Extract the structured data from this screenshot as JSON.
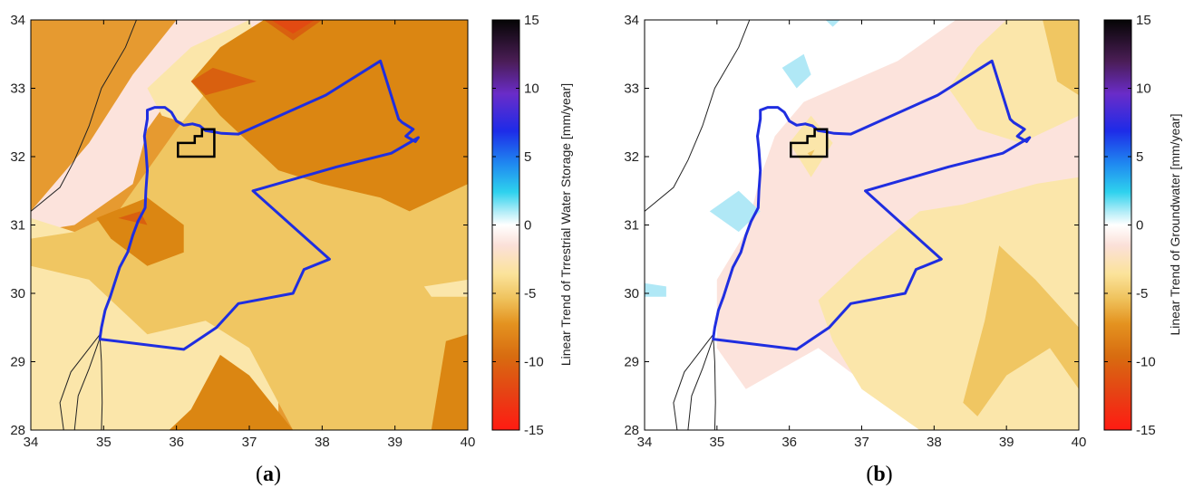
{
  "colors": {
    "c0": "#fce3dc",
    "c1": "#fbe6aa",
    "c2": "#f0c662",
    "c3": "#e69a30",
    "c4": "#db8612",
    "c5": "#d9600f",
    "c6": "#e24a12",
    "pos": "#b0e8f6",
    "boundary": "#1f2ee0",
    "box": "#000000",
    "coast": "#222222"
  },
  "colorbar": {
    "ticks": [
      "15",
      "10",
      "5",
      "0",
      "-5",
      "-10",
      "-15"
    ],
    "tick_values": [
      15,
      10,
      5,
      0,
      -5,
      -10,
      -15
    ]
  },
  "chart_data": [
    {
      "type": "heatmap",
      "panel": "a",
      "caption": {
        "open": "(",
        "letter": "a",
        "close": ")"
      },
      "xlim": [
        34,
        40
      ],
      "ylim": [
        28,
        34
      ],
      "xticks": [
        "34",
        "35",
        "36",
        "37",
        "38",
        "39",
        "40"
      ],
      "yticks": [
        "28",
        "29",
        "30",
        "31",
        "32",
        "33",
        "34"
      ],
      "colorbar_label": "Linear Trend of Trrestrial Water Storage [mm/year]",
      "colorbar_range": [
        -15,
        15
      ],
      "background_level": "c3",
      "regions": [
        {
          "level": "c0",
          "points": [
            [
              34,
              31.2
            ],
            [
              34.8,
              32.2
            ],
            [
              35.4,
              33.2
            ],
            [
              36,
              34
            ],
            [
              37.4,
              34
            ],
            [
              36,
              33
            ],
            [
              35.6,
              32.4
            ],
            [
              35.4,
              31.6
            ],
            [
              34.6,
              31
            ],
            [
              34,
              30.9
            ]
          ]
        },
        {
          "level": "c1",
          "points": [
            [
              34,
              31.1
            ],
            [
              34.6,
              30.9
            ],
            [
              35,
              30.6
            ],
            [
              35.2,
              30.2
            ],
            [
              35.6,
              29.6
            ],
            [
              36.4,
              29.8
            ],
            [
              37,
              29.6
            ],
            [
              37.4,
              29
            ],
            [
              37.4,
              28
            ],
            [
              34,
              28
            ]
          ]
        },
        {
          "level": "c1",
          "points": [
            [
              35.6,
              33
            ],
            [
              36.2,
              33.6
            ],
            [
              37,
              34
            ],
            [
              37.2,
              33.4
            ],
            [
              36.6,
              32.8
            ],
            [
              36.4,
              32.4
            ],
            [
              35.8,
              32.6
            ]
          ]
        },
        {
          "level": "c2",
          "points": [
            [
              34,
              30.8
            ],
            [
              34.6,
              30.9
            ],
            [
              35.2,
              31.2
            ],
            [
              35.6,
              31.8
            ],
            [
              36,
              32.4
            ],
            [
              36.6,
              33.2
            ],
            [
              37.2,
              34
            ],
            [
              40,
              34
            ],
            [
              40,
              28
            ],
            [
              37.6,
              28
            ],
            [
              37,
              29.2
            ],
            [
              36.4,
              29.6
            ],
            [
              35.6,
              29.4
            ],
            [
              35.2,
              29.8
            ],
            [
              34.8,
              30.2
            ],
            [
              34,
              30.4
            ]
          ]
        },
        {
          "level": "c1",
          "points": [
            [
              34,
              30.2
            ],
            [
              34.7,
              29.6
            ],
            [
              35,
              29
            ],
            [
              35.2,
              28
            ],
            [
              34,
              28
            ]
          ]
        },
        {
          "level": "c1",
          "points": [
            [
              39.4,
              30.1
            ],
            [
              40,
              30.2
            ],
            [
              40,
              29.95
            ],
            [
              39.5,
              29.95
            ]
          ]
        },
        {
          "level": "c4",
          "points": [
            [
              37.2,
              34
            ],
            [
              40,
              34
            ],
            [
              40,
              31.6
            ],
            [
              39.2,
              31.2
            ],
            [
              38.8,
              31.4
            ],
            [
              38,
              31.6
            ],
            [
              37.4,
              31.8
            ],
            [
              37,
              32.2
            ],
            [
              36.6,
              32.6
            ],
            [
              36.2,
              33.1
            ],
            [
              36.6,
              33.6
            ]
          ]
        },
        {
          "level": "c4",
          "points": [
            [
              34.9,
              31.1
            ],
            [
              35.6,
              31.4
            ],
            [
              36.1,
              31
            ],
            [
              36.1,
              30.6
            ],
            [
              35.6,
              30.4
            ],
            [
              35.1,
              30.8
            ]
          ]
        },
        {
          "level": "c4",
          "points": [
            [
              35.9,
              28
            ],
            [
              36.2,
              28.3
            ],
            [
              36.6,
              29.1
            ],
            [
              37,
              28.8
            ],
            [
              37.6,
              28
            ]
          ]
        },
        {
          "level": "c4",
          "points": [
            [
              39.5,
              28
            ],
            [
              40,
              28
            ],
            [
              40,
              29.4
            ],
            [
              39.7,
              29.3
            ]
          ]
        },
        {
          "level": "c5",
          "points": [
            [
              37.2,
              34
            ],
            [
              37.6,
              33.7
            ],
            [
              38.0,
              34
            ]
          ]
        },
        {
          "level": "c5",
          "points": [
            [
              36.2,
              33.1
            ],
            [
              36.5,
              33.3
            ],
            [
              37.1,
              33.1
            ],
            [
              36.4,
              32.9
            ]
          ]
        },
        {
          "level": "c5",
          "points": [
            [
              35.2,
              31.1
            ],
            [
              35.5,
              31.2
            ],
            [
              35.6,
              31.0
            ]
          ]
        },
        {
          "level": "c6",
          "points": [
            [
              37.3,
              34
            ],
            [
              37.6,
              33.8
            ],
            [
              37.9,
              34
            ]
          ]
        }
      ]
    },
    {
      "type": "heatmap",
      "panel": "b",
      "caption": {
        "open": "(",
        "letter": "b",
        "close": ")"
      },
      "xlim": [
        34,
        40
      ],
      "ylim": [
        28,
        34
      ],
      "xticks": [
        "34",
        "35",
        "36",
        "37",
        "38",
        "39",
        "40"
      ],
      "yticks": [
        "28",
        "29",
        "30",
        "31",
        "32",
        "33",
        "34"
      ],
      "colorbar_label": "Linear Trend of Groundwater [mm/year]",
      "colorbar_range": [
        -15,
        15
      ],
      "background_level": "white",
      "regions": [
        {
          "level": "c0",
          "points": [
            [
              35,
              30.2
            ],
            [
              35.4,
              30.9
            ],
            [
              35.6,
              31.7
            ],
            [
              35.8,
              32.3
            ],
            [
              36.2,
              32.8
            ],
            [
              37.5,
              33.4
            ],
            [
              38.3,
              34
            ],
            [
              40,
              34
            ],
            [
              40,
              28
            ],
            [
              38,
              28
            ],
            [
              37.4,
              28.4
            ],
            [
              36.4,
              29.2
            ],
            [
              35.4,
              28.6
            ],
            [
              35,
              29.2
            ]
          ]
        },
        {
          "level": "c1",
          "points": [
            [
              38.2,
              33
            ],
            [
              38.6,
              33.6
            ],
            [
              39,
              34
            ],
            [
              40,
              34
            ],
            [
              40,
              32.6
            ],
            [
              39.2,
              32.2
            ],
            [
              38.6,
              32.4
            ]
          ]
        },
        {
          "level": "c1",
          "points": [
            [
              36.0,
              32.2
            ],
            [
              36.3,
              32.6
            ],
            [
              36.6,
              32.2
            ],
            [
              36.3,
              31.7
            ]
          ]
        },
        {
          "level": "c1",
          "points": [
            [
              36.4,
              29.9
            ],
            [
              37,
              30.5
            ],
            [
              37.8,
              31.2
            ],
            [
              38.4,
              31.3
            ],
            [
              39.4,
              31.6
            ],
            [
              40,
              31.7
            ],
            [
              40,
              28
            ],
            [
              37.8,
              28
            ],
            [
              37,
              28.6
            ],
            [
              36.6,
              29.3
            ]
          ]
        },
        {
          "level": "c2",
          "points": [
            [
              39.5,
              34
            ],
            [
              40,
              34
            ],
            [
              40,
              32.9
            ],
            [
              39.7,
              33.1
            ]
          ]
        },
        {
          "level": "c2",
          "points": [
            [
              38.4,
              28.4
            ],
            [
              38.7,
              29.6
            ],
            [
              38.9,
              30.7
            ],
            [
              39.4,
              30.2
            ],
            [
              40,
              29.5
            ],
            [
              40,
              28.6
            ],
            [
              39.6,
              29.2
            ],
            [
              39,
              28.8
            ],
            [
              38.6,
              28.2
            ]
          ]
        },
        {
          "level": "c2",
          "points": [
            [
              36.25,
              32.05
            ],
            [
              36.35,
              32.1
            ],
            [
              36.3,
              32.0
            ]
          ]
        },
        {
          "level": "pos",
          "points": [
            [
              35.9,
              33.3
            ],
            [
              36.2,
              33.5
            ],
            [
              36.3,
              33.2
            ],
            [
              36.1,
              33.0
            ]
          ]
        },
        {
          "level": "pos",
          "points": [
            [
              34.9,
              31.2
            ],
            [
              35.3,
              31.5
            ],
            [
              35.6,
              31.2
            ],
            [
              35.3,
              30.9
            ]
          ]
        },
        {
          "level": "pos",
          "points": [
            [
              36.5,
              34
            ],
            [
              36.7,
              34
            ],
            [
              36.6,
              33.9
            ]
          ]
        },
        {
          "level": "pos",
          "points": [
            [
              34,
              30.15
            ],
            [
              34.3,
              30.1
            ],
            [
              34.3,
              29.95
            ],
            [
              34,
              29.95
            ]
          ]
        }
      ]
    }
  ],
  "boundary": [
    [
      34.95,
      29.35
    ],
    [
      34.97,
      29.5
    ],
    [
      35.02,
      29.75
    ],
    [
      35.09,
      29.95
    ],
    [
      35.15,
      30.15
    ],
    [
      35.22,
      30.38
    ],
    [
      35.33,
      30.6
    ],
    [
      35.4,
      30.85
    ],
    [
      35.47,
      31.05
    ],
    [
      35.57,
      31.25
    ],
    [
      35.58,
      31.5
    ],
    [
      35.6,
      31.8
    ],
    [
      35.58,
      32.1
    ],
    [
      35.56,
      32.3
    ],
    [
      35.6,
      32.55
    ],
    [
      35.6,
      32.68
    ],
    [
      35.7,
      32.72
    ],
    [
      35.84,
      32.72
    ],
    [
      35.93,
      32.65
    ],
    [
      36.0,
      32.52
    ],
    [
      36.1,
      32.46
    ],
    [
      36.22,
      32.48
    ],
    [
      36.32,
      32.45
    ],
    [
      36.4,
      32.38
    ],
    [
      36.52,
      32.36
    ],
    [
      36.62,
      32.34
    ],
    [
      36.85,
      32.33
    ],
    [
      38.05,
      32.9
    ],
    [
      38.8,
      33.4
    ],
    [
      39.05,
      32.55
    ],
    [
      39.1,
      32.5
    ],
    [
      39.25,
      32.4
    ],
    [
      39.15,
      32.3
    ],
    [
      39.28,
      32.22
    ],
    [
      39.32,
      32.28
    ],
    [
      38.95,
      32.05
    ],
    [
      38.2,
      31.85
    ],
    [
      37.05,
      31.5
    ],
    [
      38.1,
      30.5
    ],
    [
      37.75,
      30.35
    ],
    [
      37.6,
      30.0
    ],
    [
      36.85,
      29.85
    ],
    [
      36.55,
      29.5
    ],
    [
      36.1,
      29.18
    ],
    [
      34.95,
      29.33
    ]
  ],
  "box_poly": [
    [
      36.02,
      32.0
    ],
    [
      36.52,
      32.0
    ],
    [
      36.52,
      32.4
    ],
    [
      36.35,
      32.4
    ],
    [
      36.35,
      32.3
    ],
    [
      36.25,
      32.3
    ],
    [
      36.25,
      32.2
    ],
    [
      36.02,
      32.2
    ]
  ],
  "coast_lines": [
    [
      [
        34.0,
        31.2
      ],
      [
        34.4,
        31.55
      ],
      [
        34.6,
        31.95
      ],
      [
        34.8,
        32.45
      ],
      [
        34.97,
        33.0
      ],
      [
        35.3,
        33.6
      ],
      [
        35.45,
        34.0
      ]
    ],
    [
      [
        34.6,
        28.0
      ],
      [
        34.65,
        28.5
      ],
      [
        34.8,
        28.9
      ],
      [
        34.95,
        29.35
      ],
      [
        34.97,
        29.0
      ],
      [
        34.98,
        28.4
      ],
      [
        34.97,
        28.0
      ]
    ],
    [
      [
        34.45,
        28.0
      ],
      [
        34.4,
        28.4
      ],
      [
        34.55,
        28.85
      ],
      [
        34.95,
        29.4
      ]
    ]
  ]
}
